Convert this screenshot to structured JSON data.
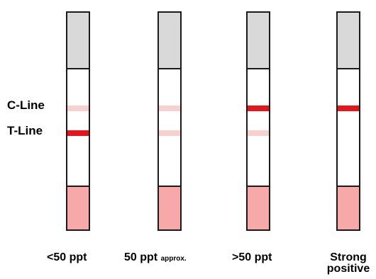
{
  "labels": {
    "c_line": "C-Line",
    "t_line": "T-Line"
  },
  "strips": [
    {
      "caption": "<50 ppt",
      "caption_suffix": "",
      "c_color": "#f8d0d0",
      "t_color": "#e8141c"
    },
    {
      "caption": "50 ppt",
      "caption_suffix": "approx.",
      "c_color": "#f8d0d0",
      "t_color": "#f8d0d0"
    },
    {
      "caption": ">50 ppt",
      "caption_suffix": "",
      "c_color": "#e8141c",
      "t_color": "#f8d0d0"
    },
    {
      "caption_line1": "Strong",
      "caption_line2": "positive",
      "c_color": "#e8141c",
      "t_color": ""
    }
  ],
  "colors": {
    "strong_line": "#e8141c",
    "faint_line": "#f8d0d0",
    "sample_pad": "#f7a8a8",
    "handle": "#d9d9d9"
  }
}
